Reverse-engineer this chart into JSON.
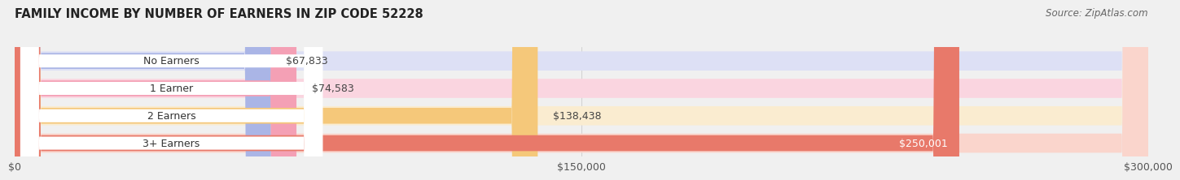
{
  "title": "FAMILY INCOME BY NUMBER OF EARNERS IN ZIP CODE 52228",
  "source": "Source: ZipAtlas.com",
  "categories": [
    "No Earners",
    "1 Earner",
    "2 Earners",
    "3+ Earners"
  ],
  "values": [
    67833,
    74583,
    138438,
    250001
  ],
  "labels": [
    "$67,833",
    "$74,583",
    "$138,438",
    "$250,001"
  ],
  "bar_colors": [
    "#aab5e6",
    "#f4a0b5",
    "#f5c87a",
    "#e8796a"
  ],
  "bar_bg_colors": [
    "#dde0f5",
    "#fad5e0",
    "#faecd0",
    "#fad5cc"
  ],
  "xlim": [
    0,
    300000
  ],
  "xticks": [
    0,
    150000,
    300000
  ],
  "xticklabels": [
    "$0",
    "$150,000",
    "$300,000"
  ],
  "title_fontsize": 10.5,
  "source_fontsize": 8.5,
  "label_fontsize": 9,
  "tick_fontsize": 9,
  "bg_color": "#f0f0f0",
  "chart_bg": "#f5f5f5"
}
